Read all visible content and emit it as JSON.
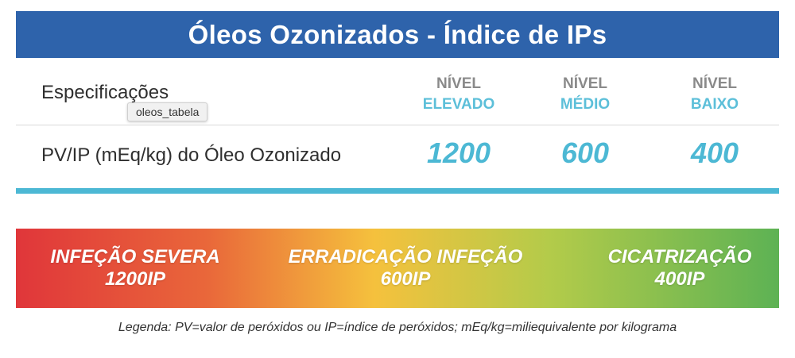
{
  "header": {
    "title": "Óleos Ozonizados - Índice de IPs"
  },
  "table": {
    "spec_label": "Especificações",
    "tooltip": "oleos_tabela",
    "levels": [
      {
        "top": "NÍVEL",
        "bottom": "ELEVADO"
      },
      {
        "top": "NÍVEL",
        "bottom": "MÉDIO"
      },
      {
        "top": "NÍVEL",
        "bottom": "BAIXO"
      }
    ],
    "row_label": "PV/IP (mEq/kg) do Óleo Ozonizado",
    "values": [
      "1200",
      "600",
      "400"
    ]
  },
  "scale": {
    "zones": [
      {
        "line1": "INFEÇÃO SEVERA",
        "line2": "1200IP"
      },
      {
        "line1": "ERRADICAÇÃO INFEÇÃO",
        "line2": "600IP"
      },
      {
        "line1": "CICATRIZAÇÃO",
        "line2": "400IP"
      }
    ],
    "colors": [
      "#e0363a",
      "#f5c13d",
      "#5db254"
    ]
  },
  "legend": "Legenda: PV=valor de peróxidos ou IP=índice de peróxidos; mEq/kg=miliequivalente por kilograma",
  "colors": {
    "header": "#2e63ab",
    "accent": "#4cb8d4"
  }
}
